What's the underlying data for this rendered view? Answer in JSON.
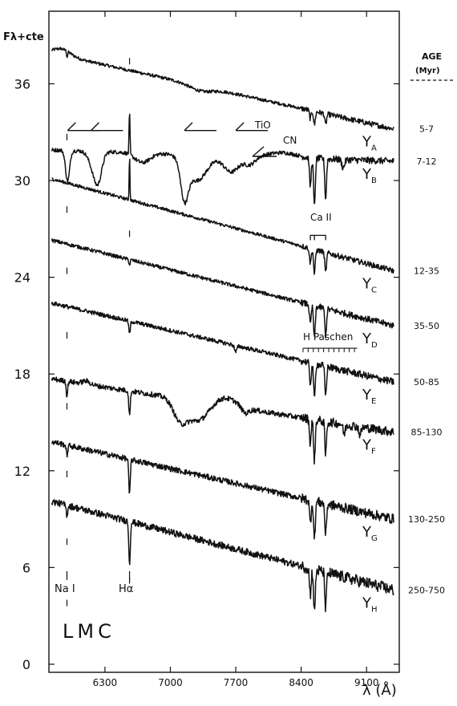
{
  "chart_data": {
    "type": "line",
    "y_axis_label": "Fλ+cte",
    "x_axis_label": "λ (Å)",
    "x_ticks": [
      6300,
      7000,
      7700,
      8400,
      9100
    ],
    "y_ticks": [
      0,
      6,
      12,
      18,
      24,
      30,
      36
    ],
    "xlim": [
      5700,
      9450
    ],
    "ylim": [
      -0.5,
      40.5
    ],
    "grid": false,
    "age_header": "AGE",
    "age_unit": "(Myr)",
    "panel_label": "LMC",
    "line_labels": {
      "na": "Na I",
      "ha": "Hα",
      "tio": "TiO",
      "cn": "CN",
      "ca": "Ca II",
      "paschen": "H Paschen"
    },
    "series": [
      {
        "name": "YA",
        "age": "5-7",
        "start": 37.9,
        "end": 33.2
      },
      {
        "name": "YB",
        "age": "7-12",
        "start": 31.9,
        "end": 31.2
      },
      {
        "name": "YC",
        "age": "12-35",
        "start": 30.1,
        "end": 24.4
      },
      {
        "name": "YD",
        "age": "35-50",
        "start": 26.3,
        "end": 21.0
      },
      {
        "name": "YE",
        "age": "50-85",
        "start": 22.4,
        "end": 17.5
      },
      {
        "name": "YF",
        "age": "85-130",
        "start": 17.7,
        "end": 14.4
      },
      {
        "name": "YG",
        "age": "130-250",
        "start": 13.8,
        "end": 9.0
      },
      {
        "name": "YH",
        "age": "250-750",
        "start": 10.1,
        "end": 4.6
      }
    ]
  }
}
